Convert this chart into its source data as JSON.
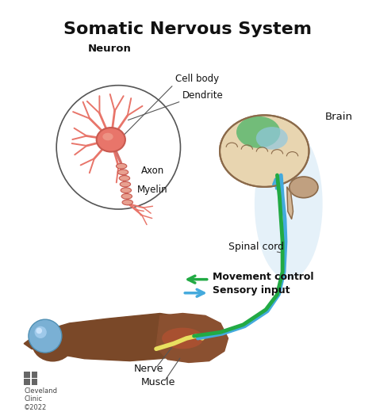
{
  "title": "Somatic Nervous System",
  "title_fontsize": 16,
  "bg_color": "#ffffff",
  "labels": {
    "neuron": "Neuron",
    "cell_body": "Cell body",
    "dendrite": "Dendrite",
    "axon": "Axon",
    "myelin": "Myelin",
    "brain": "Brain",
    "spinal_cord": "Spinal cord",
    "movement_control": "Movement control",
    "sensory_input": "Sensory input",
    "nerve": "Nerve",
    "muscle": "Muscle",
    "cleveland": "Cleveland\nClinic\n©2022"
  },
  "colors": {
    "neuron_body": "#e8756a",
    "neuron_outline": "#c85a50",
    "axon_color": "#d4706a",
    "myelin_color": "#e8a090",
    "circle_outline": "#555555",
    "brain_base": "#e8d5b0",
    "brain_outline": "#8b6a4a",
    "brain_green": "#5db870",
    "brain_blue_region": "#a8c8e0",
    "cerebellum": "#c0a080",
    "green_arrow": "#22aa44",
    "blue_arrow": "#44aadd",
    "arm_skin": "#8b6040",
    "ball_color": "#7ab0d4",
    "nerve_color": "#e8e080",
    "muscle_color": "#c07840",
    "text_color": "#111111",
    "spinal_bg": "#d8eaf5"
  }
}
